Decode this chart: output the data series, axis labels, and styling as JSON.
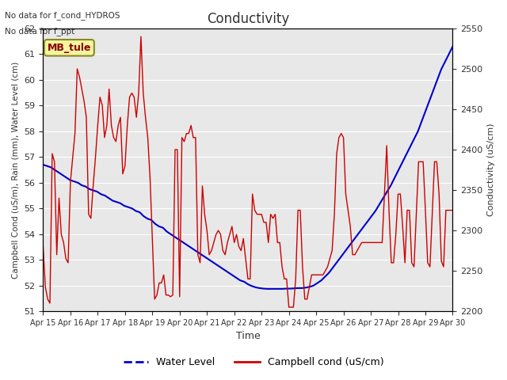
{
  "title": "Conductivity",
  "xlabel": "Time",
  "ylabel_left": "Campbell Cond (uS/m), Rain (mm), Water Level (cm)",
  "ylabel_right": "Conductivity (uS/cm)",
  "annotations": [
    "No data for f_cond_HYDROS",
    "No data for f_ppt"
  ],
  "box_label": "MB_tule",
  "ylim_left": [
    51.0,
    62.0
  ],
  "ylim_right": [
    2200,
    2550
  ],
  "yticks_left": [
    51.0,
    52.0,
    53.0,
    54.0,
    55.0,
    56.0,
    57.0,
    58.0,
    59.0,
    60.0,
    61.0,
    62.0
  ],
  "yticks_right": [
    2200,
    2250,
    2300,
    2350,
    2400,
    2450,
    2500,
    2550
  ],
  "xtick_labels": [
    "Apr 15",
    "Apr 16",
    "Apr 17",
    "Apr 18",
    "Apr 19",
    "Apr 20",
    "Apr 21",
    "Apr 22",
    "Apr 23",
    "Apr 24",
    "Apr 25",
    "Apr 26",
    "Apr 27",
    "Apr 28",
    "Apr 29",
    "Apr 30"
  ],
  "bg_color": "#e8e8e8",
  "grid_color": "#ffffff",
  "water_level_color": "#0000cc",
  "campbell_cond_color": "#cc0000",
  "legend_water": "Water Level",
  "legend_campbell": "Campbell cond (uS/cm)",
  "water_level": [
    56.7,
    56.65,
    56.6,
    56.5,
    56.4,
    56.3,
    56.2,
    56.1,
    56.05,
    56.0,
    55.9,
    55.85,
    55.75,
    55.7,
    55.65,
    55.55,
    55.5,
    55.4,
    55.3,
    55.25,
    55.2,
    55.1,
    55.05,
    55.0,
    54.9,
    54.85,
    54.7,
    54.6,
    54.55,
    54.4,
    54.3,
    54.25,
    54.1,
    54.0,
    53.9,
    53.8,
    53.7,
    53.6,
    53.5,
    53.4,
    53.3,
    53.2,
    53.1,
    53.0,
    52.9,
    52.8,
    52.7,
    52.6,
    52.5,
    52.4,
    52.3,
    52.2,
    52.15,
    52.05,
    51.98,
    51.93,
    51.9,
    51.88,
    51.87,
    51.87,
    51.87,
    51.87,
    51.87,
    51.88,
    51.88,
    51.89,
    51.9,
    51.9,
    51.92,
    51.95,
    52.0,
    52.1,
    52.2,
    52.35,
    52.5,
    52.7,
    52.9,
    53.1,
    53.3,
    53.5,
    53.7,
    53.9,
    54.1,
    54.3,
    54.5,
    54.7,
    54.9,
    55.15,
    55.4,
    55.65,
    55.9,
    56.2,
    56.5,
    56.8,
    57.1,
    57.4,
    57.7,
    58.0,
    58.4,
    58.8,
    59.2,
    59.6,
    60.0,
    60.4,
    60.7,
    61.0,
    61.3
  ],
  "campbell_cond": [
    2280,
    2230,
    2215,
    2210,
    2395,
    2385,
    2270,
    2340,
    2295,
    2285,
    2265,
    2260,
    2360,
    2390,
    2420,
    2500,
    2490,
    2475,
    2460,
    2440,
    2320,
    2315,
    2355,
    2390,
    2430,
    2465,
    2455,
    2415,
    2430,
    2475,
    2430,
    2415,
    2410,
    2430,
    2440,
    2370,
    2380,
    2430,
    2465,
    2470,
    2465,
    2440,
    2470,
    2540,
    2470,
    2440,
    2415,
    2365,
    2290,
    2215,
    2220,
    2235,
    2235,
    2245,
    2220,
    2220,
    2218,
    2220,
    2400,
    2400,
    2218,
    2415,
    2410,
    2420,
    2420,
    2430,
    2415,
    2415,
    2270,
    2260,
    2355,
    2320,
    2300,
    2270,
    2275,
    2285,
    2295,
    2300,
    2295,
    2275,
    2270,
    2285,
    2295,
    2305,
    2285,
    2295,
    2280,
    2275,
    2290,
    2265,
    2240,
    2240,
    2345,
    2325,
    2320,
    2320,
    2320,
    2310,
    2310,
    2285,
    2320,
    2315,
    2320,
    2285,
    2285,
    2255,
    2240,
    2240,
    2205,
    2205,
    2205,
    2240,
    2325,
    2325,
    2255,
    2215,
    2215,
    2230,
    2245,
    2245,
    2245,
    2245,
    2245,
    2245,
    2250,
    2255,
    2265,
    2275,
    2320,
    2395,
    2415,
    2420,
    2415,
    2345,
    2325,
    2305,
    2270,
    2270,
    2275,
    2280,
    2285,
    2285,
    2285,
    2285,
    2285,
    2285,
    2285,
    2285,
    2285,
    2285,
    2345,
    2405,
    2325,
    2260,
    2260,
    2295,
    2345,
    2345,
    2305,
    2260,
    2325,
    2325,
    2260,
    2255,
    2320,
    2385,
    2385,
    2385,
    2325,
    2260,
    2255,
    2320,
    2385,
    2385,
    2345,
    2262,
    2255,
    2325,
    2325,
    2325,
    2325
  ]
}
